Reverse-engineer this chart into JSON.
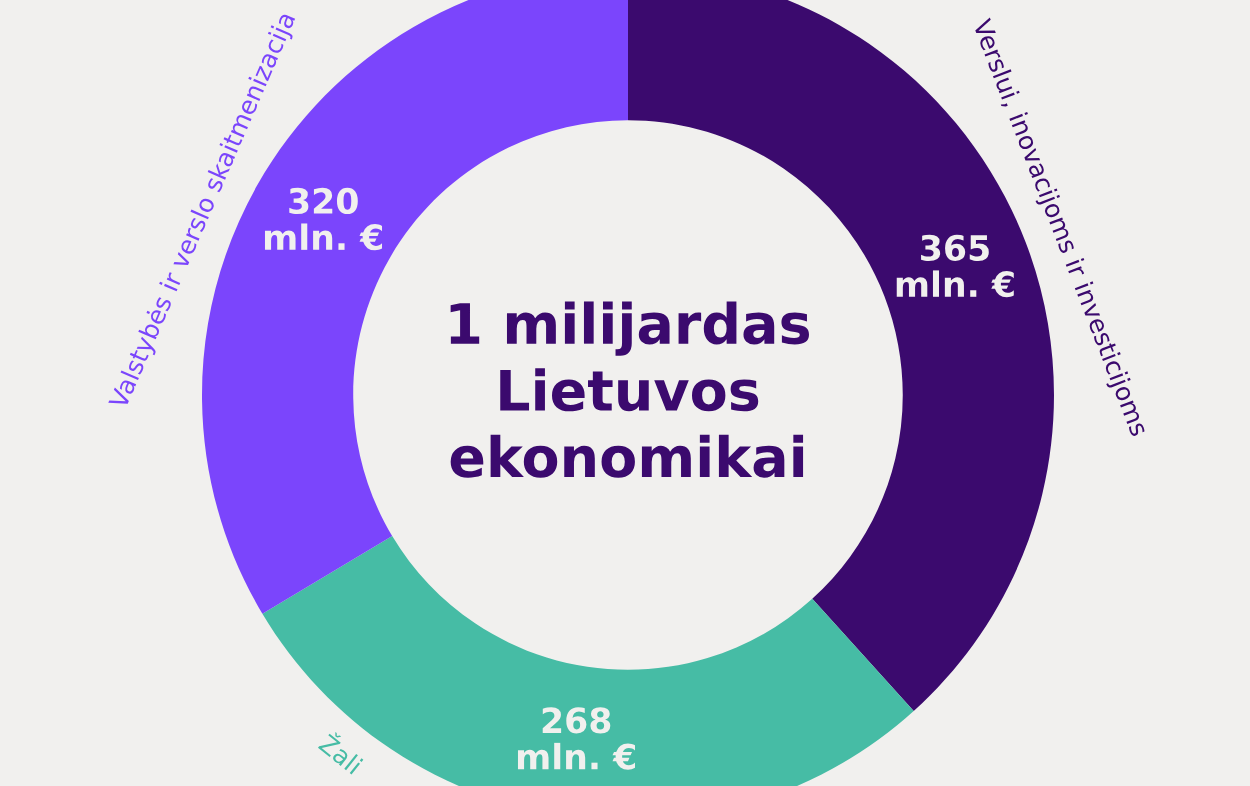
{
  "chart_data": {
    "type": "donut",
    "title": "1 milijardas\nLietuvos\nekonomikai",
    "categories": [
      "Verslui, inovacijoms ir investicijoms",
      "Žali",
      "Valstybės ir verslo skaitmenizacija"
    ],
    "values": [
      365,
      268,
      320
    ],
    "colors": [
      "#3b0a6e",
      "#46bca5",
      "#7b45fc"
    ],
    "value_labels": [
      "365\nmln. €",
      "268\nmln. €",
      "320\nmln. €"
    ]
  }
}
